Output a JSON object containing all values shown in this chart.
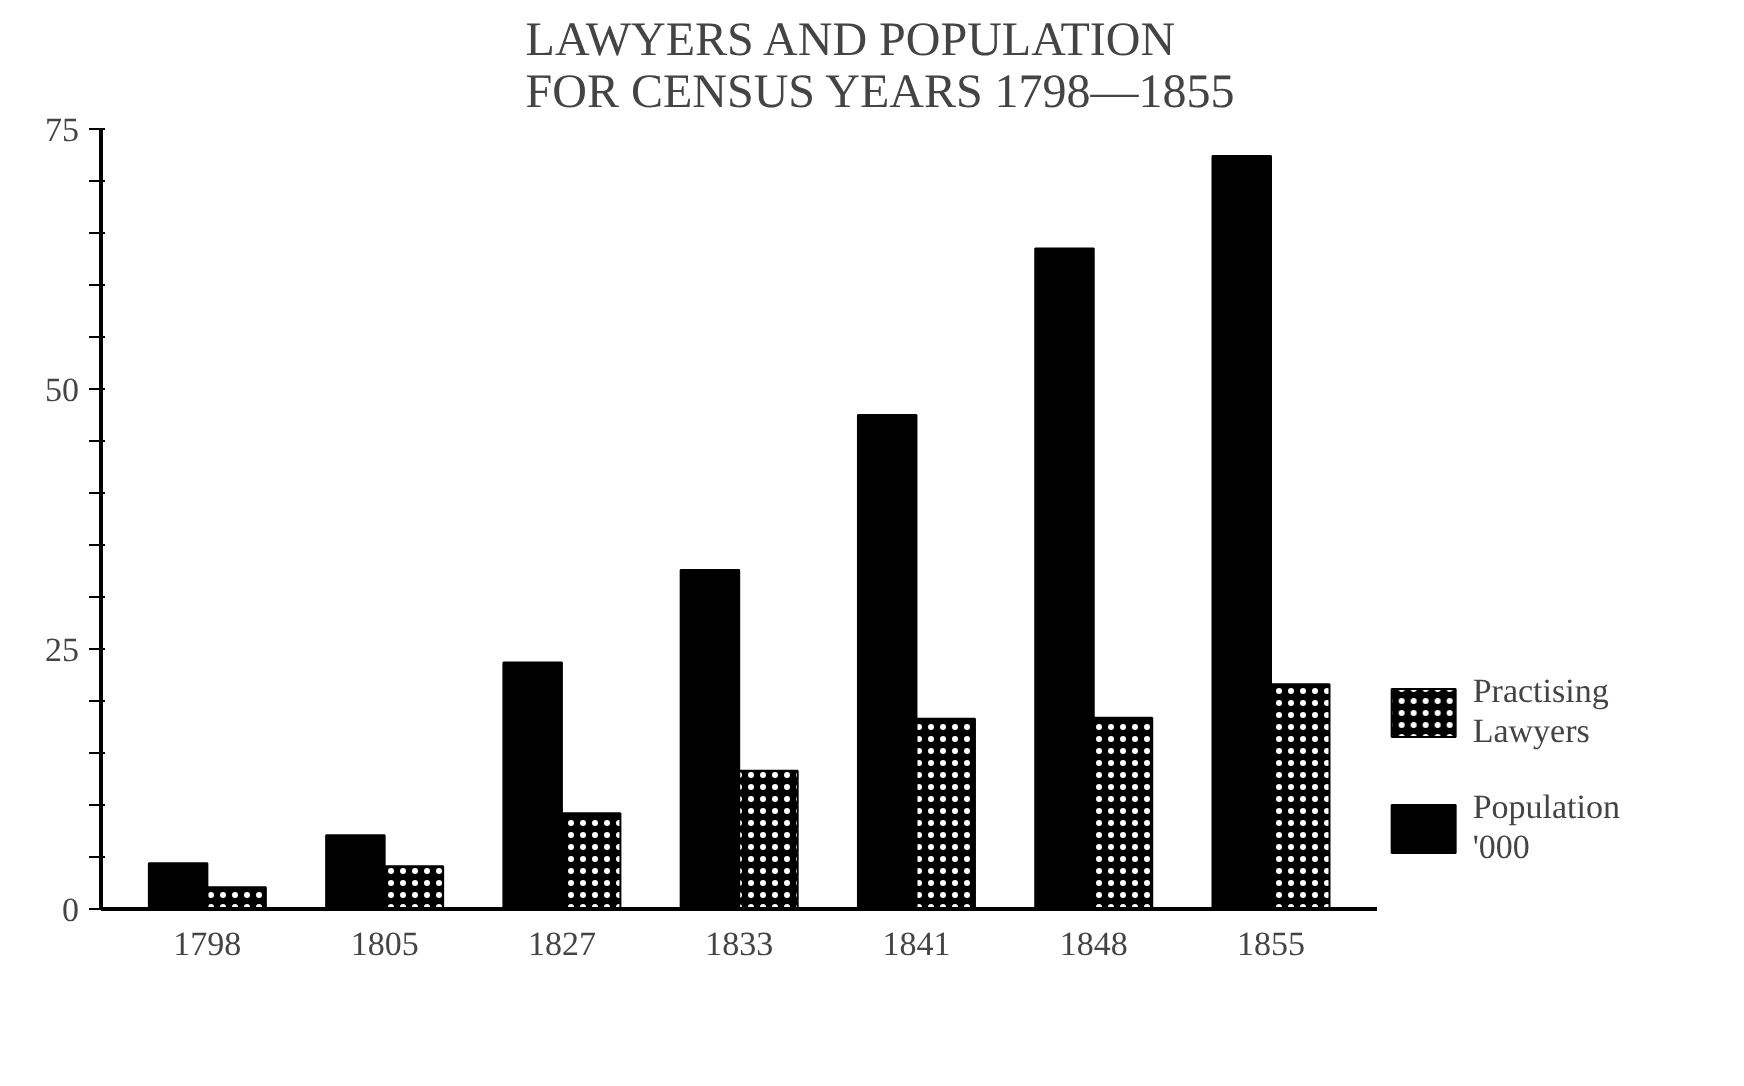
{
  "chart_data": {
    "type": "bar",
    "title": "LAWYERS AND POPULATION\nFOR CENSUS YEARS 1798—1855",
    "categories": [
      "1798",
      "1805",
      "1827",
      "1833",
      "1841",
      "1848",
      "1855"
    ],
    "series": [
      {
        "name": "Population\n'000",
        "color": "#000000",
        "values": [
          4.4,
          7.1,
          23.7,
          32.6,
          47.5,
          63.5,
          72.4
        ]
      },
      {
        "name": "Practising\nLawyers",
        "color": "#000000",
        "values": [
          2.1,
          4.1,
          9.2,
          13.3,
          18.3,
          18.4,
          21.6
        ]
      }
    ],
    "ylim": [
      0,
      75
    ],
    "yticks": [
      0,
      {
        "value": 5,
        "label": null
      },
      {
        "value": 10,
        "label": null
      },
      {
        "value": 15,
        "label": null
      },
      {
        "value": 20,
        "label": null
      },
      25,
      {
        "value": 30,
        "label": null
      },
      {
        "value": 35,
        "label": null
      },
      {
        "value": 40,
        "label": null
      },
      {
        "value": 45,
        "label": null
      },
      50,
      {
        "value": 55,
        "label": null
      },
      {
        "value": 60,
        "label": null
      },
      {
        "value": 65,
        "label": null
      },
      {
        "value": 70,
        "label": null
      },
      75
    ],
    "grid": false,
    "legend": "right"
  }
}
